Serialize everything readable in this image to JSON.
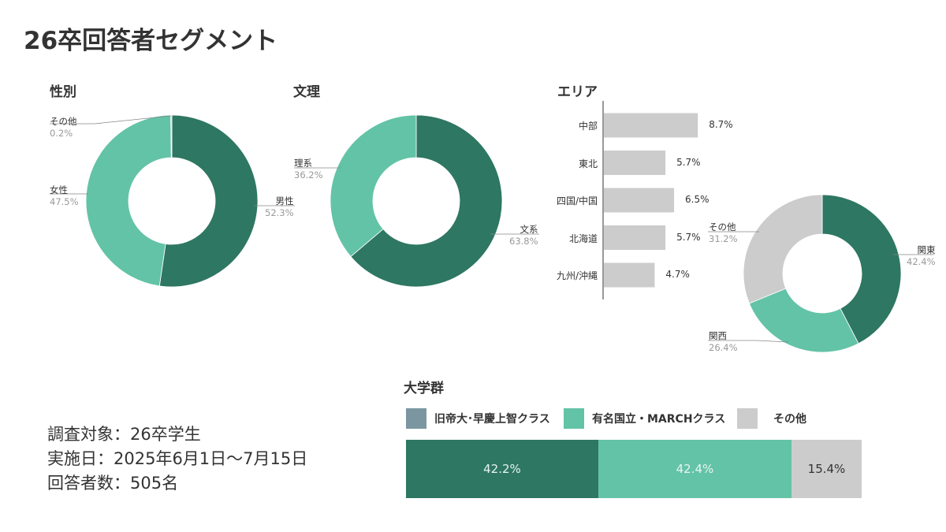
{
  "title": "26卒回答者セグメント",
  "colors": {
    "dark": "#2e7762",
    "light": "#63c3a6",
    "gray": "#cccccc",
    "slate": "#7b96a0"
  },
  "chart_data": [
    {
      "type": "pie",
      "title": "性別",
      "donut": true,
      "slices": [
        {
          "label": "男性",
          "value": 52.3,
          "display": "52.3%",
          "color": "#2e7762"
        },
        {
          "label": "女性",
          "value": 47.5,
          "display": "47.5%",
          "color": "#63c3a6"
        },
        {
          "label": "その他",
          "value": 0.2,
          "display": "0.2%",
          "color": "#cccccc"
        }
      ]
    },
    {
      "type": "pie",
      "title": "文理",
      "donut": true,
      "slices": [
        {
          "label": "文系",
          "value": 63.8,
          "display": "63.8%",
          "color": "#2e7762"
        },
        {
          "label": "理系",
          "value": 36.2,
          "display": "36.2%",
          "color": "#63c3a6"
        }
      ]
    },
    {
      "type": "bar",
      "title": "エリア",
      "orientation": "horizontal",
      "categories": [
        "中部",
        "東北",
        "四国/中国",
        "北海道",
        "九州/沖縄"
      ],
      "values": [
        8.7,
        5.7,
        6.5,
        5.7,
        4.7
      ],
      "labels": [
        "8.7%",
        "5.7%",
        "6.5%",
        "5.7%",
        "4.7%"
      ],
      "color": "#cccccc"
    },
    {
      "type": "pie",
      "donut": true,
      "slices": [
        {
          "label": "関東",
          "value": 42.4,
          "display": "42.4%",
          "color": "#2e7762"
        },
        {
          "label": "関西",
          "value": 26.4,
          "display": "26.4%",
          "color": "#63c3a6"
        },
        {
          "label": "その他",
          "value": 31.2,
          "display": "31.2%",
          "color": "#cccccc"
        }
      ]
    },
    {
      "type": "bar",
      "title": "大学群",
      "stacked": true,
      "legend": [
        {
          "label": "旧帝大･早慶上智クラス",
          "color": "#7b96a0"
        },
        {
          "label": "有名国立・MARCHクラス",
          "color": "#63c3a6"
        },
        {
          "label": "その他",
          "color": "#cccccc"
        }
      ],
      "series": [
        {
          "value": 42.2,
          "label": "42.2%",
          "color": "#2e7762"
        },
        {
          "value": 42.4,
          "label": "42.4%",
          "color": "#63c3a6"
        },
        {
          "value": 15.4,
          "label": "15.4%",
          "color": "#cccccc"
        }
      ]
    }
  ],
  "info": [
    "調査対象：26卒学生",
    "実施日：2025年6月1日～7月15日",
    "回答者数：505名"
  ]
}
